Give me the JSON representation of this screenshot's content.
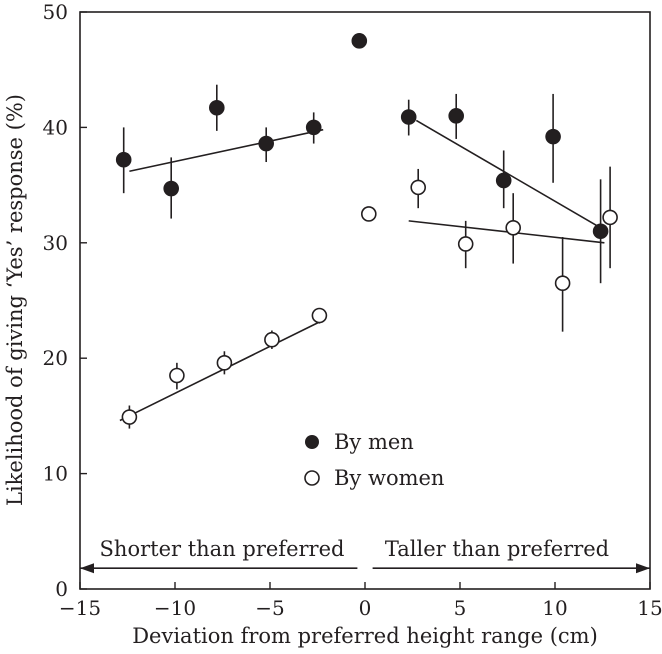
{
  "chart_data": {
    "type": "scatter",
    "title": "",
    "xlabel": "Deviation from preferred height range (cm)",
    "ylabel": "Likelihood of giving ‘Yes’ response (%)",
    "xlim": [
      -15,
      15
    ],
    "ylim": [
      0,
      50
    ],
    "xticks": [
      -15,
      -10,
      -5,
      0,
      5,
      10,
      15
    ],
    "yticks": [
      0,
      10,
      20,
      30,
      40,
      50
    ],
    "xtick_labels": [
      "−15",
      "−10",
      "−5",
      "0",
      "5",
      "10",
      "15"
    ],
    "ytick_labels": [
      "0",
      "10",
      "20",
      "30",
      "40",
      "50"
    ],
    "grid": false,
    "legend_position": "lower-middle",
    "series": [
      {
        "name": "By men",
        "marker": "filled-circle",
        "points": [
          {
            "x": -12.7,
            "y": 37.2,
            "err_lo": 34.3,
            "err_hi": 40.0
          },
          {
            "x": -10.2,
            "y": 34.7,
            "err_lo": 32.1,
            "err_hi": 37.4
          },
          {
            "x": -7.8,
            "y": 41.7,
            "err_lo": 39.7,
            "err_hi": 43.7
          },
          {
            "x": -5.2,
            "y": 38.6,
            "err_lo": 37.0,
            "err_hi": 40.0
          },
          {
            "x": -2.7,
            "y": 40.0,
            "err_lo": 38.6,
            "err_hi": 41.3
          },
          {
            "x": -0.3,
            "y": 47.5,
            "err_lo": null,
            "err_hi": null
          },
          {
            "x": 2.3,
            "y": 40.9,
            "err_lo": 39.3,
            "err_hi": 42.4
          },
          {
            "x": 4.8,
            "y": 41.0,
            "err_lo": 39.0,
            "err_hi": 42.9
          },
          {
            "x": 7.3,
            "y": 35.4,
            "err_lo": 33.0,
            "err_hi": 38.0
          },
          {
            "x": 9.9,
            "y": 39.2,
            "err_lo": 35.2,
            "err_hi": 42.9
          },
          {
            "x": 12.4,
            "y": 31.0,
            "err_lo": 26.5,
            "err_hi": 35.5
          }
        ],
        "trend_lines": [
          {
            "x": [
              -12.4,
              -2.2
            ],
            "y": [
              36.2,
              39.8
            ]
          },
          {
            "x": [
              2.7,
              12.4
            ],
            "y": [
              40.6,
              31.3
            ]
          }
        ]
      },
      {
        "name": "By women",
        "marker": "open-circle",
        "points": [
          {
            "x": -12.4,
            "y": 14.9,
            "err_lo": 13.9,
            "err_hi": 15.9
          },
          {
            "x": -9.9,
            "y": 18.5,
            "err_lo": 17.3,
            "err_hi": 19.6
          },
          {
            "x": -7.4,
            "y": 19.6,
            "err_lo": 18.6,
            "err_hi": 20.6
          },
          {
            "x": -4.9,
            "y": 21.6,
            "err_lo": 20.8,
            "err_hi": 22.4
          },
          {
            "x": -2.4,
            "y": 23.7,
            "err_lo": 23.0,
            "err_hi": 24.3
          },
          {
            "x": 0.2,
            "y": 32.5,
            "err_lo": null,
            "err_hi": null
          },
          {
            "x": 2.8,
            "y": 34.8,
            "err_lo": 33.0,
            "err_hi": 36.4
          },
          {
            "x": 5.3,
            "y": 29.9,
            "err_lo": 27.8,
            "err_hi": 31.9
          },
          {
            "x": 7.8,
            "y": 31.3,
            "err_lo": 28.2,
            "err_hi": 34.3
          },
          {
            "x": 10.4,
            "y": 26.5,
            "err_lo": 22.3,
            "err_hi": 30.5
          },
          {
            "x": 12.9,
            "y": 32.2,
            "err_lo": 27.8,
            "err_hi": 36.6
          }
        ],
        "trend_lines": [
          {
            "x": [
              -12.9,
              -2.2
            ],
            "y": [
              14.6,
              23.3
            ]
          },
          {
            "x": [
              2.3,
              12.6
            ],
            "y": [
              31.9,
              30.0
            ]
          }
        ]
      }
    ],
    "legend": [
      {
        "label": "By men",
        "marker": "filled-circle"
      },
      {
        "label": "By women",
        "marker": "open-circle"
      }
    ],
    "annotations": {
      "left_region": "Shorter than preferred",
      "right_region": "Taller than preferred",
      "left_range": [
        -15,
        -0.4
      ],
      "right_range": [
        0.4,
        15
      ],
      "arrow_y": 1.8
    },
    "colors": {
      "ink": "#231f20",
      "background": "#ffffff"
    }
  }
}
